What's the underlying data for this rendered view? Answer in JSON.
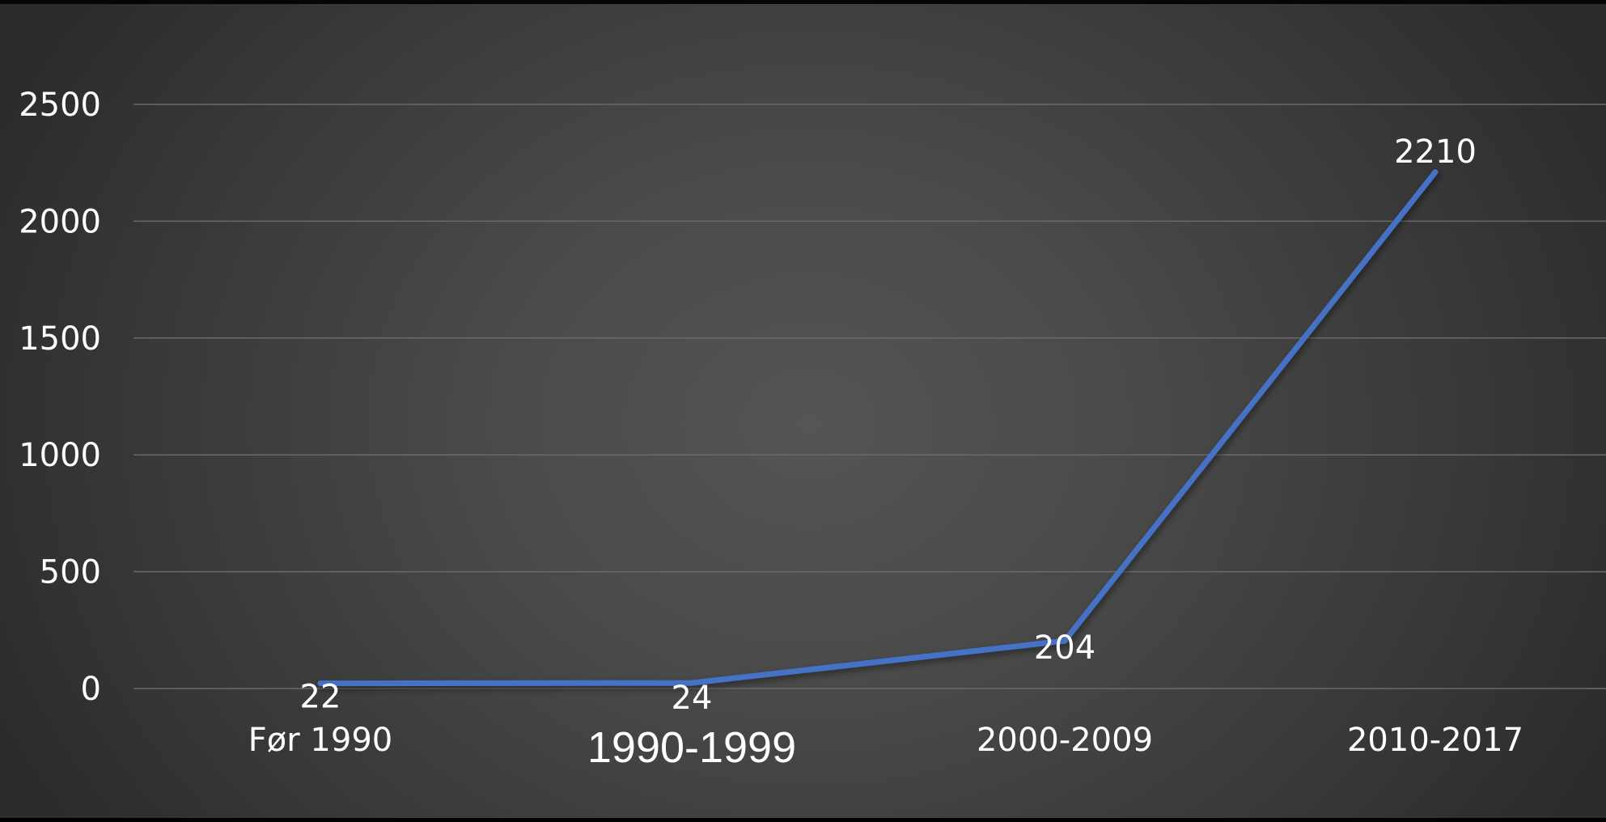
{
  "chart_data": {
    "type": "line",
    "title": "",
    "xlabel": "",
    "ylabel": "",
    "categories": [
      "Før 1990",
      "1990-1999",
      "2000-2009",
      "2010-2017"
    ],
    "series": [
      {
        "values": [
          22,
          24,
          204,
          2210
        ]
      }
    ],
    "ylim": [
      0,
      2500
    ],
    "yticks": [
      0,
      500,
      1000,
      1500,
      2000,
      2500
    ],
    "grid": true,
    "legend": "none",
    "data_labels": true,
    "colors": {
      "line": "#4472C4",
      "grid": "#6a6a6a",
      "text": "#ffffff"
    }
  }
}
